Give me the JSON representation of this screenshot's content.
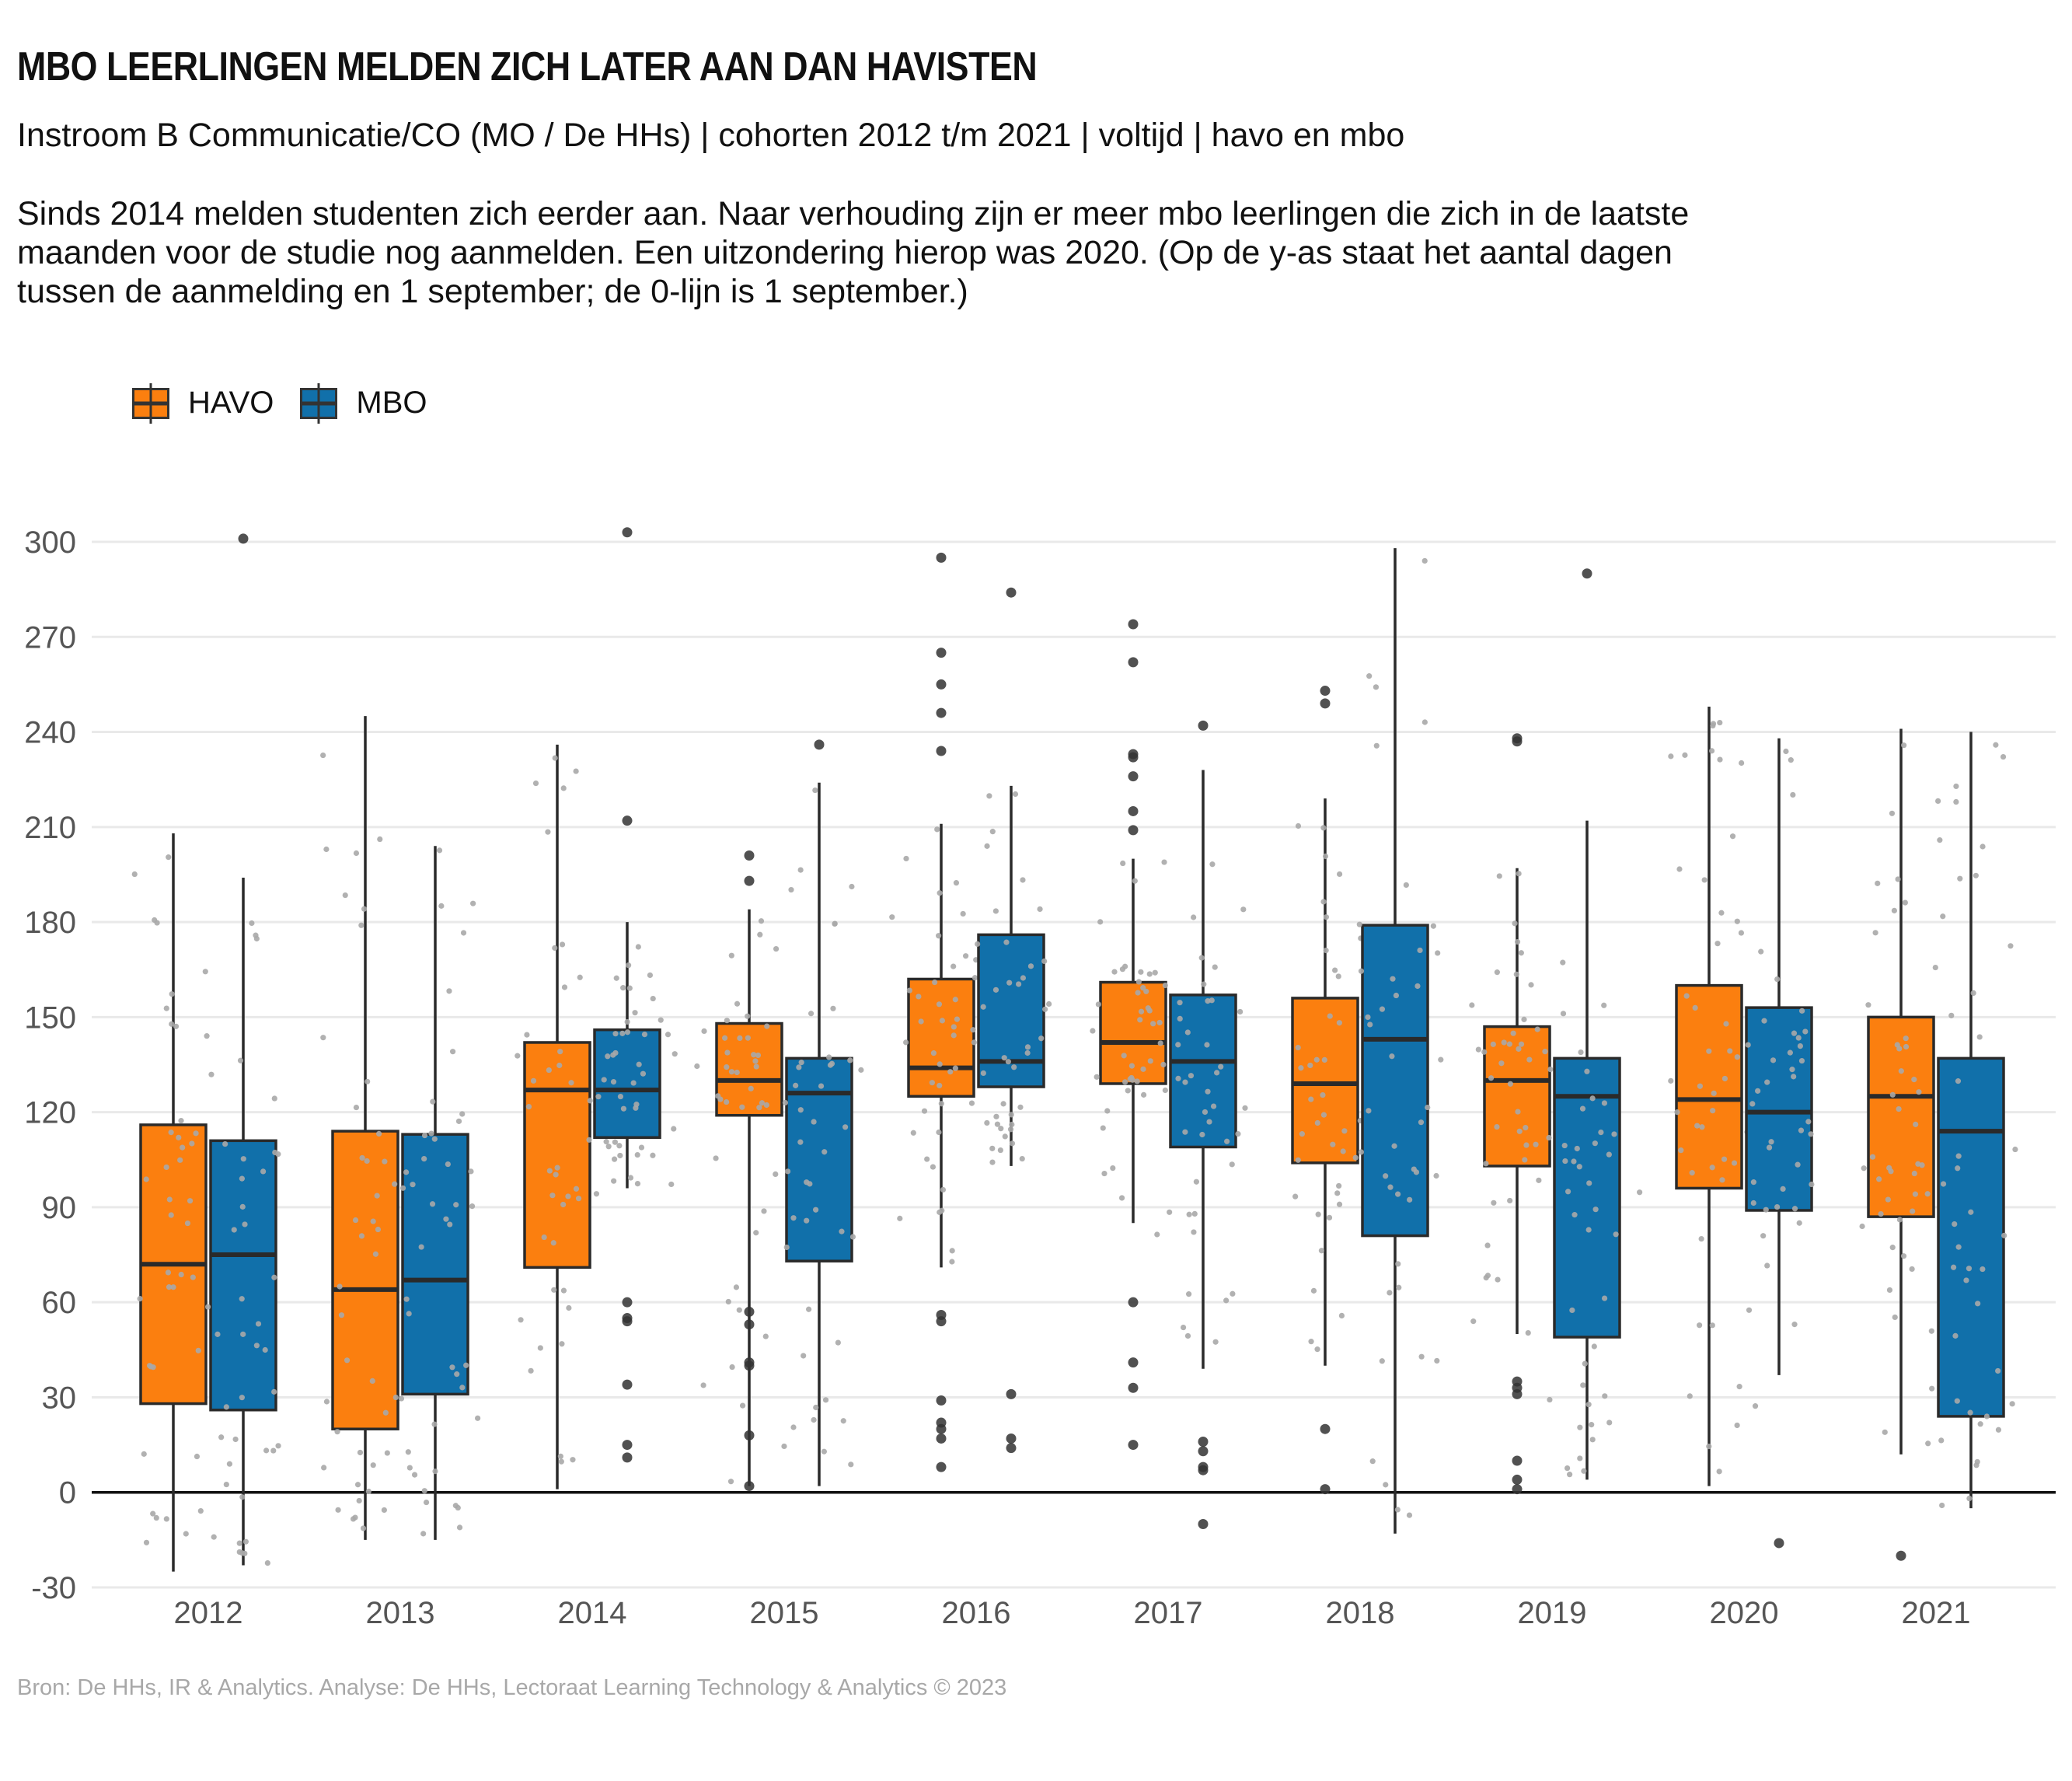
{
  "title": "MBO LEERLINGEN MELDEN ZICH LATER AAN DAN HAVISTEN",
  "subtitle": "Instroom B Communicatie/CO (MO / De HHs) | cohorten 2012 t/m 2021 | voltijd | havo en mbo",
  "caption_lines": [
    "Sinds 2014 melden studenten zich eerder aan. Naar verhouding zijn er meer mbo leerlingen die zich in de laatste",
    "maanden voor de studie nog aanmelden. Een uitzondering hierop was 2020. (Op de y-as staat het aantal dagen",
    "tussen de aanmelding en 1 september; de 0-lijn is 1 september.)"
  ],
  "source": "Bron: De HHs, IR & Analytics. Analyse: De HHs, Lectoraat Learning Technology & Analytics © 2023",
  "legend": [
    {
      "label": "HAVO",
      "color": "#FB7F0F"
    },
    {
      "label": "MBO",
      "color": "#1170AA"
    }
  ],
  "chart_data": {
    "type": "boxplot",
    "categories": [
      "2012",
      "2013",
      "2014",
      "2015",
      "2016",
      "2017",
      "2018",
      "2019",
      "2020",
      "2021"
    ],
    "ylim": [
      -30,
      310
    ],
    "yticks": [
      -30,
      0,
      30,
      60,
      90,
      120,
      150,
      180,
      210,
      240,
      270,
      300
    ],
    "grid": true,
    "legend_position": "top-left",
    "reference_line": 0,
    "series": [
      {
        "name": "HAVO",
        "color": "#FB7F0F",
        "boxes": [
          {
            "min": -25,
            "q1": 28,
            "median": 72,
            "q3": 116,
            "max": 208,
            "outliers": []
          },
          {
            "min": -15,
            "q1": 20,
            "median": 64,
            "q3": 114,
            "max": 245,
            "outliers": []
          },
          {
            "min": 1,
            "q1": 71,
            "median": 127,
            "q3": 142,
            "max": 236,
            "outliers": []
          },
          {
            "min": 2,
            "q1": 119,
            "median": 130,
            "q3": 148,
            "max": 184,
            "outliers": [
              201,
              193,
              57,
              53,
              41,
              40,
              18,
              2
            ]
          },
          {
            "min": 71,
            "q1": 125,
            "median": 134,
            "q3": 162,
            "max": 211,
            "outliers": [
              295,
              265,
              255,
              246,
              234,
              56,
              54,
              29,
              22,
              20,
              17,
              8
            ]
          },
          {
            "min": 85,
            "q1": 129,
            "median": 142,
            "q3": 161,
            "max": 200,
            "outliers": [
              274,
              262,
              233,
              232,
              226,
              215,
              209,
              60,
              41,
              33,
              15
            ]
          },
          {
            "min": 40,
            "q1": 104,
            "median": 129,
            "q3": 156,
            "max": 219,
            "outliers": [
              253,
              249,
              20,
              1
            ]
          },
          {
            "min": 50,
            "q1": 103,
            "median": 130,
            "q3": 147,
            "max": 197,
            "outliers": [
              238,
              237,
              35,
              33,
              31,
              10,
              4,
              1
            ]
          },
          {
            "min": 2,
            "q1": 96,
            "median": 124,
            "q3": 160,
            "max": 248,
            "outliers": []
          },
          {
            "min": 12,
            "q1": 87,
            "median": 125,
            "q3": 150,
            "max": 241,
            "outliers": [
              -20
            ]
          }
        ]
      },
      {
        "name": "MBO",
        "color": "#1170AA",
        "boxes": [
          {
            "min": -23,
            "q1": 26,
            "median": 75,
            "q3": 111,
            "max": 194,
            "outliers": [
              301
            ]
          },
          {
            "min": -15,
            "q1": 31,
            "median": 67,
            "q3": 113,
            "max": 204,
            "outliers": []
          },
          {
            "min": 96,
            "q1": 112,
            "median": 127,
            "q3": 146,
            "max": 180,
            "outliers": [
              303,
              212,
              60,
              55,
              54,
              34,
              15,
              11
            ]
          },
          {
            "min": 2,
            "q1": 73,
            "median": 126,
            "q3": 137,
            "max": 224,
            "outliers": [
              236
            ]
          },
          {
            "min": 103,
            "q1": 128,
            "median": 136,
            "q3": 176,
            "max": 223,
            "outliers": [
              284,
              31,
              17,
              14
            ]
          },
          {
            "min": 39,
            "q1": 109,
            "median": 136,
            "q3": 157,
            "max": 228,
            "outliers": [
              242,
              16,
              13,
              8,
              7,
              -10
            ]
          },
          {
            "min": -13,
            "q1": 81,
            "median": 143,
            "q3": 179,
            "max": 298,
            "outliers": []
          },
          {
            "min": 4,
            "q1": 49,
            "median": 125,
            "q3": 137,
            "max": 212,
            "outliers": [
              290
            ]
          },
          {
            "min": 37,
            "q1": 89,
            "median": 120,
            "q3": 153,
            "max": 238,
            "outliers": [
              -16
            ]
          },
          {
            "min": -5,
            "q1": 24,
            "median": 114,
            "q3": 137,
            "max": 240,
            "outliers": []
          }
        ]
      }
    ]
  }
}
